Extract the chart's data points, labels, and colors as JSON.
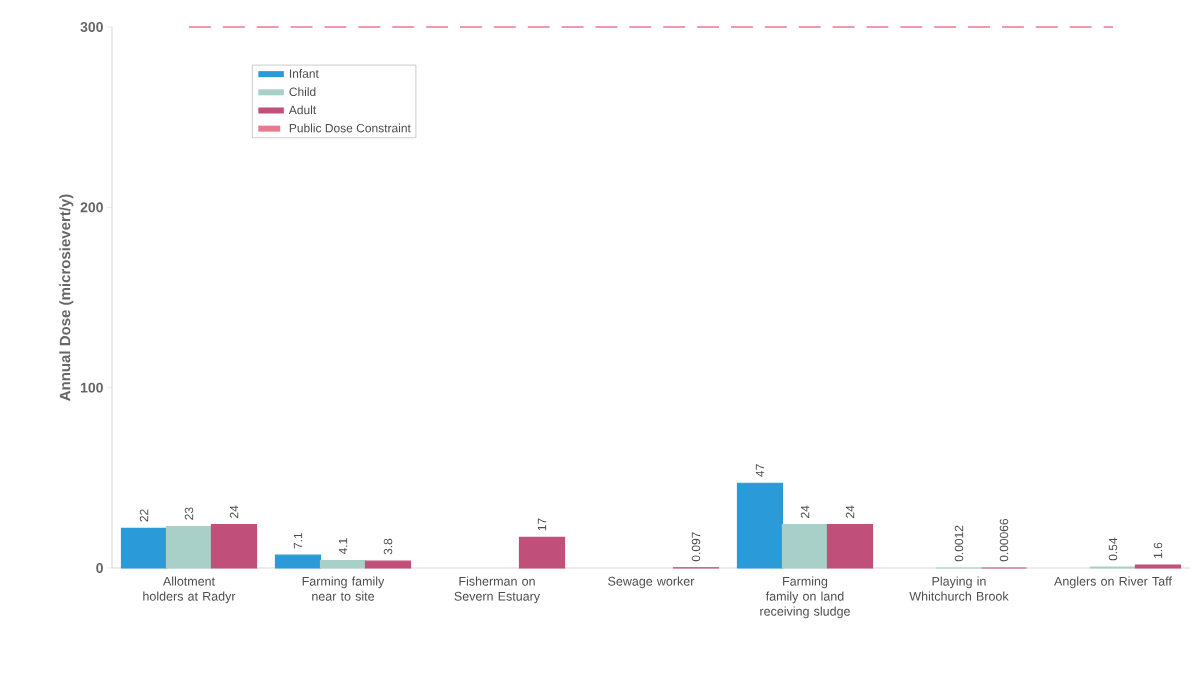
{
  "chart_data": {
    "type": "bar",
    "ylabel": "Annual Dose (microsievert/y)",
    "categories": [
      "Allotment holders at Radyr",
      "Farming family near to site",
      "Fisherman on Severn Estuary",
      "Sewage worker",
      "Farming family on land receiving sludge",
      "Playing in Whitchurch Brook",
      "Anglers on River Taff"
    ],
    "series": [
      {
        "name": "Infant",
        "color": "#2a9ad8",
        "values": [
          22,
          7.1,
          null,
          null,
          47,
          null,
          null
        ]
      },
      {
        "name": "Child",
        "color": "#a8cfc8",
        "values": [
          23,
          4.1,
          null,
          null,
          24,
          0.0012,
          0.54
        ]
      },
      {
        "name": "Adult",
        "color": "#c0507a",
        "values": [
          24,
          3.8,
          17,
          0.097,
          24,
          0.00066,
          1.6
        ]
      }
    ],
    "ref_lines": [
      {
        "axis": "y",
        "value": 300,
        "label": "Public Dose Constraint",
        "color": "#e87a90",
        "line_style": "dashed"
      }
    ],
    "ylim": [
      0,
      300
    ],
    "yticks": [
      0,
      100,
      200,
      300
    ],
    "data_labels": true,
    "grid": false,
    "legend": "top left"
  }
}
